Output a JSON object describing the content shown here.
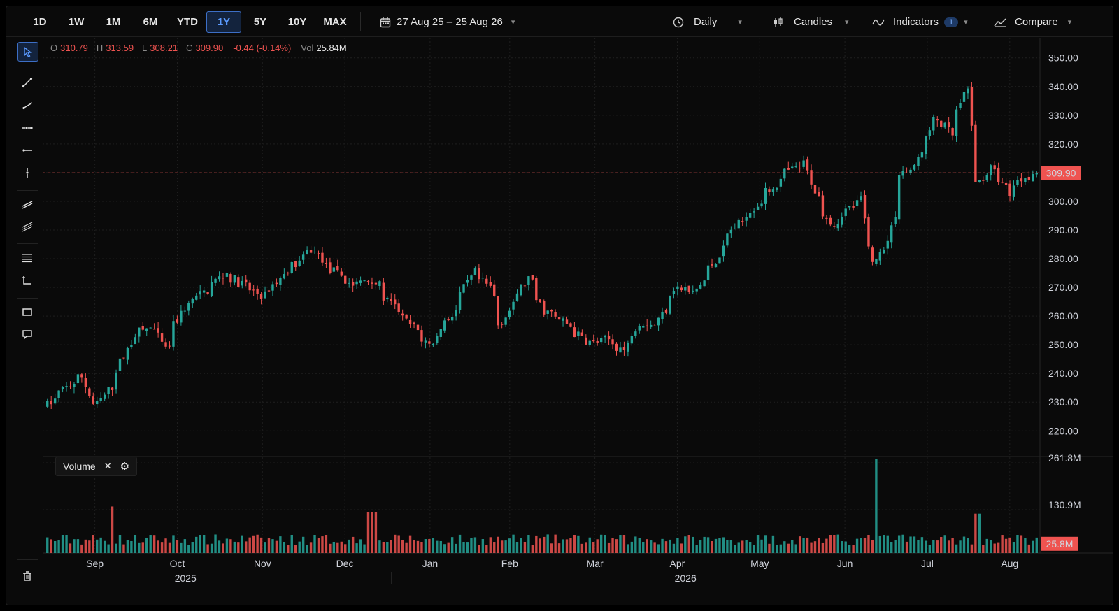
{
  "toolbar": {
    "timeframes": [
      "1D",
      "1W",
      "1M",
      "6M",
      "YTD",
      "1Y",
      "5Y",
      "10Y",
      "MAX"
    ],
    "active_timeframe": "1Y",
    "date_range": "27 Aug 25 – 25 Aug 26",
    "interval": "Daily",
    "chart_style": "Candles",
    "indicators_label": "Indicators",
    "indicators_count": "1",
    "compare_label": "Compare"
  },
  "drawing_tools": [
    "cursor-icon",
    "trend-line-icon",
    "ray-icon",
    "extended-line-icon",
    "horizontal-ray-icon",
    "vertical-line-icon",
    "parallel-channel-icon",
    "regression-channel-icon",
    "fib-retracement-icon",
    "date-price-range-icon",
    "rectangle-icon",
    "callout-icon",
    "trash-icon"
  ],
  "ohlc": {
    "o_label": "O",
    "o": "310.79",
    "h_label": "H",
    "h": "313.59",
    "l_label": "L",
    "l": "308.21",
    "c_label": "C",
    "c": "309.90",
    "change": "-0.44 (-0.14%)",
    "vol_label": "Vol",
    "vol": "25.84M"
  },
  "volume_pane": {
    "label": "Volume"
  },
  "colors": {
    "up": "#26a69a",
    "down": "#ef5350",
    "background": "#0a0a0a",
    "grid": "#1f1f1f",
    "accent": "#3d6fc6"
  },
  "chart_data": {
    "type": "candlestick",
    "start_date": "2025-08-27",
    "end_date": "2026-08-25",
    "last_price": 309.9,
    "last_price_label": "309.90",
    "price_axis": {
      "ticks": [
        "350.00",
        "340.00",
        "330.00",
        "320.00",
        "310.00",
        "300.00",
        "290.00",
        "280.00",
        "270.00",
        "260.00",
        "250.00",
        "240.00",
        "230.00",
        "220.00"
      ],
      "ylim": [
        213,
        357
      ]
    },
    "volume_axis": {
      "ticks": [
        "261.8M",
        "130.9M"
      ],
      "last_label": "25.8M",
      "ylim": [
        0,
        261.8
      ]
    },
    "x_month_labels": [
      "Sep",
      "Oct",
      "Nov",
      "Dec",
      "Jan",
      "Feb",
      "Mar",
      "Apr",
      "May",
      "Jun",
      "Jul",
      "Aug"
    ],
    "x_year_labels": [
      "2025",
      "2026"
    ],
    "price_path": [
      [
        "2025-08-27",
        229
      ],
      [
        "2025-09-04",
        236
      ],
      [
        "2025-09-09",
        239
      ],
      [
        "2025-09-13",
        226
      ],
      [
        "2025-09-20",
        237
      ],
      [
        "2025-09-27",
        253
      ],
      [
        "2025-10-05",
        257
      ],
      [
        "2025-10-09",
        248
      ],
      [
        "2025-10-16",
        263
      ],
      [
        "2025-10-23",
        268
      ],
      [
        "2025-10-31",
        275
      ],
      [
        "2025-11-08",
        270
      ],
      [
        "2025-11-14",
        267
      ],
      [
        "2025-11-22",
        275
      ],
      [
        "2025-12-02",
        283
      ],
      [
        "2025-12-09",
        276
      ],
      [
        "2025-12-17",
        271
      ],
      [
        "2025-12-24",
        273
      ],
      [
        "2025-12-31",
        264
      ],
      [
        "2026-01-06",
        258
      ],
      [
        "2026-01-14",
        250
      ],
      [
        "2026-01-23",
        262
      ],
      [
        "2026-01-30",
        275
      ],
      [
        "2026-02-05",
        270
      ],
      [
        "2026-02-09",
        257
      ],
      [
        "2026-02-19",
        273
      ],
      [
        "2026-02-25",
        262
      ],
      [
        "2026-03-04",
        258
      ],
      [
        "2026-03-14",
        250
      ],
      [
        "2026-03-21",
        252
      ],
      [
        "2026-03-26",
        248
      ],
      [
        "2026-04-01",
        258
      ],
      [
        "2026-04-07",
        257
      ],
      [
        "2026-04-14",
        270
      ],
      [
        "2026-04-21",
        268
      ],
      [
        "2026-04-28",
        278
      ],
      [
        "2026-05-05",
        290
      ],
      [
        "2026-05-15",
        300
      ],
      [
        "2026-05-25",
        310
      ],
      [
        "2026-06-01",
        313
      ],
      [
        "2026-06-05",
        301
      ],
      [
        "2026-06-11",
        292
      ],
      [
        "2026-06-16",
        297
      ],
      [
        "2026-06-22",
        301
      ],
      [
        "2026-06-25",
        278
      ],
      [
        "2026-07-01",
        286
      ],
      [
        "2026-07-06",
        310
      ],
      [
        "2026-07-12",
        312
      ],
      [
        "2026-07-18",
        331
      ],
      [
        "2026-07-24",
        323
      ],
      [
        "2026-07-30",
        339
      ],
      [
        "2026-08-02",
        304
      ],
      [
        "2026-08-08",
        313
      ],
      [
        "2026-08-14",
        303
      ],
      [
        "2026-08-20",
        309
      ],
      [
        "2026-08-25",
        309.9
      ]
    ],
    "volume_spikes": [
      [
        "2025-09-20",
        130
      ],
      [
        "2025-12-24",
        115
      ],
      [
        "2026-06-27",
        261.8
      ],
      [
        "2026-08-03",
        110
      ]
    ],
    "typical_volume": 40
  }
}
